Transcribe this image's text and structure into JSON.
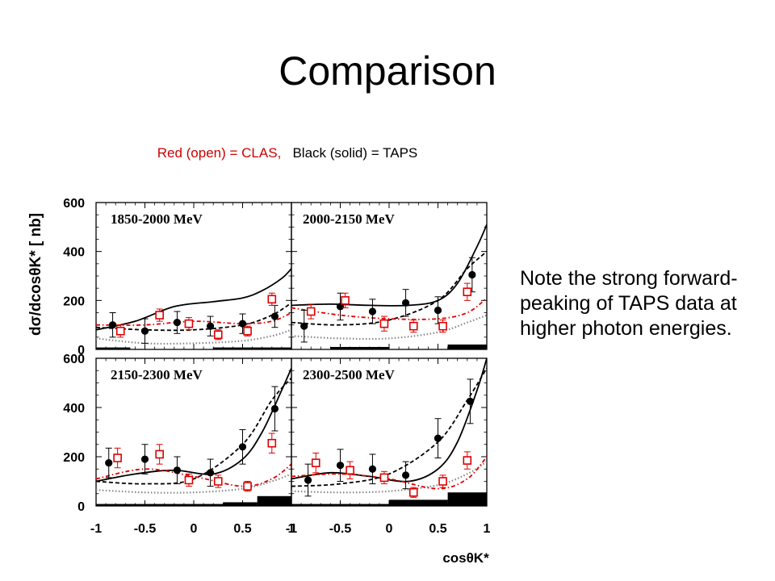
{
  "slide": {
    "title": "Comparison",
    "legend_red": "Red (open) = CLAS,",
    "legend_black": "Black (solid) = TAPS",
    "note": "Note the strong forward-peaking of TAPS data at higher photon energies."
  },
  "chart_data": {
    "type": "scatter",
    "ylabel": "dσ/dcosθK* [ nb]",
    "xlabel": "cosθK*",
    "x_ticks": [
      "-1",
      "-0.5",
      "0",
      "0.5",
      "1"
    ],
    "y_ticks": [
      "0",
      "200",
      "400",
      "600"
    ],
    "xlim": [
      -1,
      1
    ],
    "ylim": [
      0,
      600
    ],
    "legend": [
      {
        "name": "CLAS",
        "marker": "open-square",
        "color": "#dd0000"
      },
      {
        "name": "TAPS",
        "marker": "solid-circle",
        "color": "#000000"
      }
    ],
    "panels": [
      {
        "label": "1850-2000 MeV",
        "series": [
          {
            "name": "TAPS",
            "points": [
              {
                "x": -0.83,
                "y": 100,
                "err": 50
              },
              {
                "x": -0.5,
                "y": 75,
                "err": 50
              },
              {
                "x": -0.17,
                "y": 110,
                "err": 45
              },
              {
                "x": 0.17,
                "y": 95,
                "err": 40
              },
              {
                "x": 0.5,
                "y": 105,
                "err": 40
              },
              {
                "x": 0.83,
                "y": 135,
                "err": 45
              }
            ]
          },
          {
            "name": "CLAS",
            "points": [
              {
                "x": -0.75,
                "y": 75,
                "err": 25
              },
              {
                "x": -0.35,
                "y": 140,
                "err": 25
              },
              {
                "x": -0.05,
                "y": 105,
                "err": 25
              },
              {
                "x": 0.25,
                "y": 60,
                "err": 20
              },
              {
                "x": 0.55,
                "y": 75,
                "err": 20
              },
              {
                "x": 0.8,
                "y": 205,
                "err": 25
              }
            ]
          }
        ],
        "curves": [
          {
            "name": "solid",
            "x": [
              -1,
              -0.6,
              -0.2,
              0.2,
              0.5,
              0.7,
              0.9,
              1
            ],
            "y": [
              80,
              115,
              175,
              195,
              210,
              240,
              290,
              330
            ]
          },
          {
            "name": "dashed",
            "x": [
              -1,
              -0.5,
              0,
              0.5,
              0.8,
              1
            ],
            "y": [
              90,
              80,
              80,
              100,
              140,
              190
            ]
          },
          {
            "name": "dotted",
            "x": [
              -1,
              -0.5,
              0,
              0.5,
              0.8,
              1
            ],
            "y": [
              45,
              25,
              25,
              35,
              55,
              80
            ]
          },
          {
            "name": "dashdot",
            "x": [
              -1,
              -0.5,
              0,
              0.5,
              0.8,
              1
            ],
            "y": [
              100,
              100,
              115,
              105,
              115,
              150
            ]
          }
        ],
        "systematic_bars": [
          {
            "x0": -1,
            "x1": -0.65,
            "h": 8
          },
          {
            "x0": 0.2,
            "x1": 1,
            "h": 8
          }
        ]
      },
      {
        "label": "2000-2150 MeV",
        "series": [
          {
            "name": "TAPS",
            "points": [
              {
                "x": -0.87,
                "y": 95,
                "err": 65
              },
              {
                "x": -0.5,
                "y": 175,
                "err": 55
              },
              {
                "x": -0.17,
                "y": 155,
                "err": 50
              },
              {
                "x": 0.17,
                "y": 190,
                "err": 55
              },
              {
                "x": 0.5,
                "y": 160,
                "err": 55
              },
              {
                "x": 0.85,
                "y": 305,
                "err": 70
              }
            ]
          },
          {
            "name": "CLAS",
            "points": [
              {
                "x": -0.8,
                "y": 155,
                "err": 30
              },
              {
                "x": -0.45,
                "y": 200,
                "err": 30
              },
              {
                "x": -0.05,
                "y": 105,
                "err": 30
              },
              {
                "x": 0.25,
                "y": 95,
                "err": 25
              },
              {
                "x": 0.55,
                "y": 95,
                "err": 25
              },
              {
                "x": 0.8,
                "y": 235,
                "err": 35
              }
            ]
          }
        ],
        "curves": [
          {
            "name": "solid",
            "x": [
              -1,
              -0.6,
              -0.2,
              0.2,
              0.5,
              0.7,
              0.9,
              1
            ],
            "y": [
              180,
              185,
              180,
              180,
              200,
              270,
              420,
              510
            ]
          },
          {
            "name": "dashed",
            "x": [
              -1,
              -0.5,
              0,
              0.5,
              0.8,
              1
            ],
            "y": [
              110,
              100,
              120,
              200,
              330,
              400
            ]
          },
          {
            "name": "dotted",
            "x": [
              -1,
              -0.5,
              0,
              0.5,
              0.8,
              1
            ],
            "y": [
              55,
              45,
              45,
              70,
              110,
              140
            ]
          },
          {
            "name": "dashdot",
            "x": [
              -1,
              -0.5,
              0,
              0.5,
              0.8,
              1
            ],
            "y": [
              170,
              140,
              125,
              125,
              150,
              210
            ]
          }
        ],
        "systematic_bars": [
          {
            "x0": -0.6,
            "x1": 0,
            "h": 10
          },
          {
            "x0": 0.6,
            "x1": 1,
            "h": 20
          }
        ]
      },
      {
        "label": "2150-2300 MeV",
        "series": [
          {
            "name": "TAPS",
            "points": [
              {
                "x": -0.87,
                "y": 175,
                "err": 60
              },
              {
                "x": -0.5,
                "y": 190,
                "err": 60
              },
              {
                "x": -0.17,
                "y": 145,
                "err": 55
              },
              {
                "x": 0.17,
                "y": 135,
                "err": 55
              },
              {
                "x": 0.5,
                "y": 240,
                "err": 70
              },
              {
                "x": 0.83,
                "y": 395,
                "err": 90
              }
            ]
          },
          {
            "name": "CLAS",
            "points": [
              {
                "x": -0.78,
                "y": 195,
                "err": 40
              },
              {
                "x": -0.35,
                "y": 210,
                "err": 40
              },
              {
                "x": -0.05,
                "y": 105,
                "err": 25
              },
              {
                "x": 0.25,
                "y": 100,
                "err": 25
              },
              {
                "x": 0.55,
                "y": 80,
                "err": 20
              },
              {
                "x": 0.8,
                "y": 255,
                "err": 40
              }
            ]
          }
        ],
        "curves": [
          {
            "name": "solid",
            "x": [
              -1,
              -0.6,
              -0.2,
              0.2,
              0.5,
              0.7,
              0.9,
              1
            ],
            "y": [
              100,
              130,
              145,
              130,
              190,
              300,
              470,
              560
            ]
          },
          {
            "name": "dashed",
            "x": [
              -1,
              -0.5,
              0,
              0.5,
              0.8,
              1
            ],
            "y": [
              100,
              90,
              110,
              250,
              430,
              520
            ]
          },
          {
            "name": "dotted",
            "x": [
              -1,
              -0.5,
              0,
              0.5,
              0.8,
              1
            ],
            "y": [
              65,
              55,
              55,
              70,
              100,
              130
            ]
          },
          {
            "name": "dashdot",
            "x": [
              -1,
              -0.5,
              0,
              0.5,
              0.8,
              1
            ],
            "y": [
              110,
              150,
              120,
              80,
              110,
              170
            ]
          }
        ],
        "systematic_bars": [
          {
            "x0": -1,
            "x1": 0.3,
            "h": 8
          },
          {
            "x0": 0.3,
            "x1": 0.65,
            "h": 15
          },
          {
            "x0": 0.65,
            "x1": 1,
            "h": 40
          }
        ]
      },
      {
        "label": "2300-2500 MeV",
        "series": [
          {
            "name": "TAPS",
            "points": [
              {
                "x": -0.83,
                "y": 105,
                "err": 65
              },
              {
                "x": -0.5,
                "y": 165,
                "err": 65
              },
              {
                "x": -0.17,
                "y": 150,
                "err": 60
              },
              {
                "x": 0.17,
                "y": 125,
                "err": 55
              },
              {
                "x": 0.5,
                "y": 275,
                "err": 80
              },
              {
                "x": 0.83,
                "y": 425,
                "err": 90
              }
            ]
          },
          {
            "name": "CLAS",
            "points": [
              {
                "x": -0.75,
                "y": 175,
                "err": 40
              },
              {
                "x": -0.4,
                "y": 145,
                "err": 35
              },
              {
                "x": -0.05,
                "y": 115,
                "err": 25
              },
              {
                "x": 0.25,
                "y": 55,
                "err": 20
              },
              {
                "x": 0.55,
                "y": 100,
                "err": 25
              },
              {
                "x": 0.8,
                "y": 185,
                "err": 35
              }
            ]
          }
        ],
        "curves": [
          {
            "name": "solid",
            "x": [
              -1,
              -0.6,
              -0.2,
              0.2,
              0.5,
              0.7,
              0.9,
              1
            ],
            "y": [
              110,
              135,
              120,
              100,
              150,
              260,
              470,
              600
            ]
          },
          {
            "name": "dashed",
            "x": [
              -1,
              -0.5,
              0,
              0.5,
              0.8,
              1
            ],
            "y": [
              80,
              90,
              130,
              260,
              430,
              560
            ]
          },
          {
            "name": "dotted",
            "x": [
              -1,
              -0.5,
              0,
              0.5,
              0.8,
              1
            ],
            "y": [
              60,
              55,
              60,
              85,
              130,
              180
            ]
          },
          {
            "name": "dashdot",
            "x": [
              -1,
              -0.5,
              0,
              0.5,
              0.8,
              1
            ],
            "y": [
              120,
              130,
              110,
              70,
              110,
              200
            ]
          }
        ],
        "systematic_bars": [
          {
            "x0": -1,
            "x1": 0,
            "h": 8
          },
          {
            "x0": 0,
            "x1": 0.6,
            "h": 25
          },
          {
            "x0": 0.6,
            "x1": 1,
            "h": 55
          }
        ]
      }
    ]
  }
}
